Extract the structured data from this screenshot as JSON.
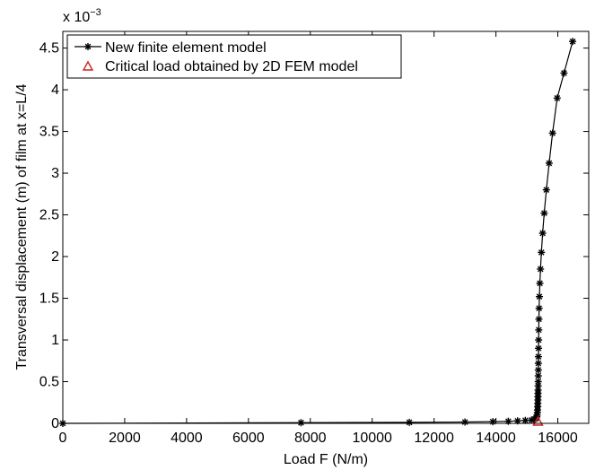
{
  "chart_data": {
    "type": "line",
    "title": "",
    "xlabel": "Load F (N/m)",
    "ylabel": "Transversal displacement (m) of film at x=L/4",
    "y_exponent_label": "x 10",
    "y_exponent_power": "−3",
    "xlim": [
      0,
      17000
    ],
    "ylim": [
      0,
      0.0047
    ],
    "x_ticks": [
      0,
      2000,
      4000,
      6000,
      8000,
      10000,
      12000,
      14000,
      16000
    ],
    "x_tick_labels": [
      "0",
      "2000",
      "4000",
      "6000",
      "8000",
      "10000",
      "12000",
      "14000",
      "16000"
    ],
    "y_ticks": [
      0,
      0.0005,
      0.001,
      0.0015,
      0.002,
      0.0025,
      0.003,
      0.0035,
      0.004,
      0.0045
    ],
    "y_tick_labels": [
      "0",
      "0.5",
      "1",
      "1.5",
      "2",
      "2.5",
      "3",
      "3.5",
      "4",
      "4.5"
    ],
    "grid": false,
    "legend_position": "top-left",
    "series": [
      {
        "name": "New finite element model",
        "color": "#000000",
        "marker": "asterisk",
        "x": [
          0,
          7700,
          11200,
          13000,
          13900,
          14400,
          14700,
          14950,
          15150,
          15250,
          15300,
          15320,
          15330,
          15340,
          15345,
          15350,
          15353,
          15356,
          15358,
          15360,
          15362,
          15364,
          15366,
          15368,
          15370,
          15372,
          15374,
          15377,
          15380,
          15385,
          15390,
          15395,
          15405,
          15420,
          15440,
          15470,
          15510,
          15560,
          15630,
          15720,
          15830,
          15980,
          16200,
          16480
        ],
        "y": [
          0,
          8e-06,
          1.2e-05,
          1.6e-05,
          2e-05,
          2.5e-05,
          3e-05,
          3.5e-05,
          4e-05,
          5e-05,
          6e-05,
          8e-05,
          0.0001,
          0.00013,
          0.00016,
          0.0002,
          0.00024,
          0.00028,
          0.00032,
          0.00036,
          0.0004,
          0.00045,
          0.0005,
          0.00057,
          0.00064,
          0.00072,
          0.0008,
          0.0009,
          0.001,
          0.00112,
          0.00125,
          0.00138,
          0.00152,
          0.00168,
          0.00185,
          0.00205,
          0.00228,
          0.00252,
          0.0028,
          0.00312,
          0.00348,
          0.0039,
          0.0042,
          0.00458
        ]
      },
      {
        "name": "Critical load obtained by 2D FEM model",
        "color": "#cc2222",
        "marker": "triangle",
        "x": [
          15360
        ],
        "y": [
          0
        ]
      }
    ]
  }
}
